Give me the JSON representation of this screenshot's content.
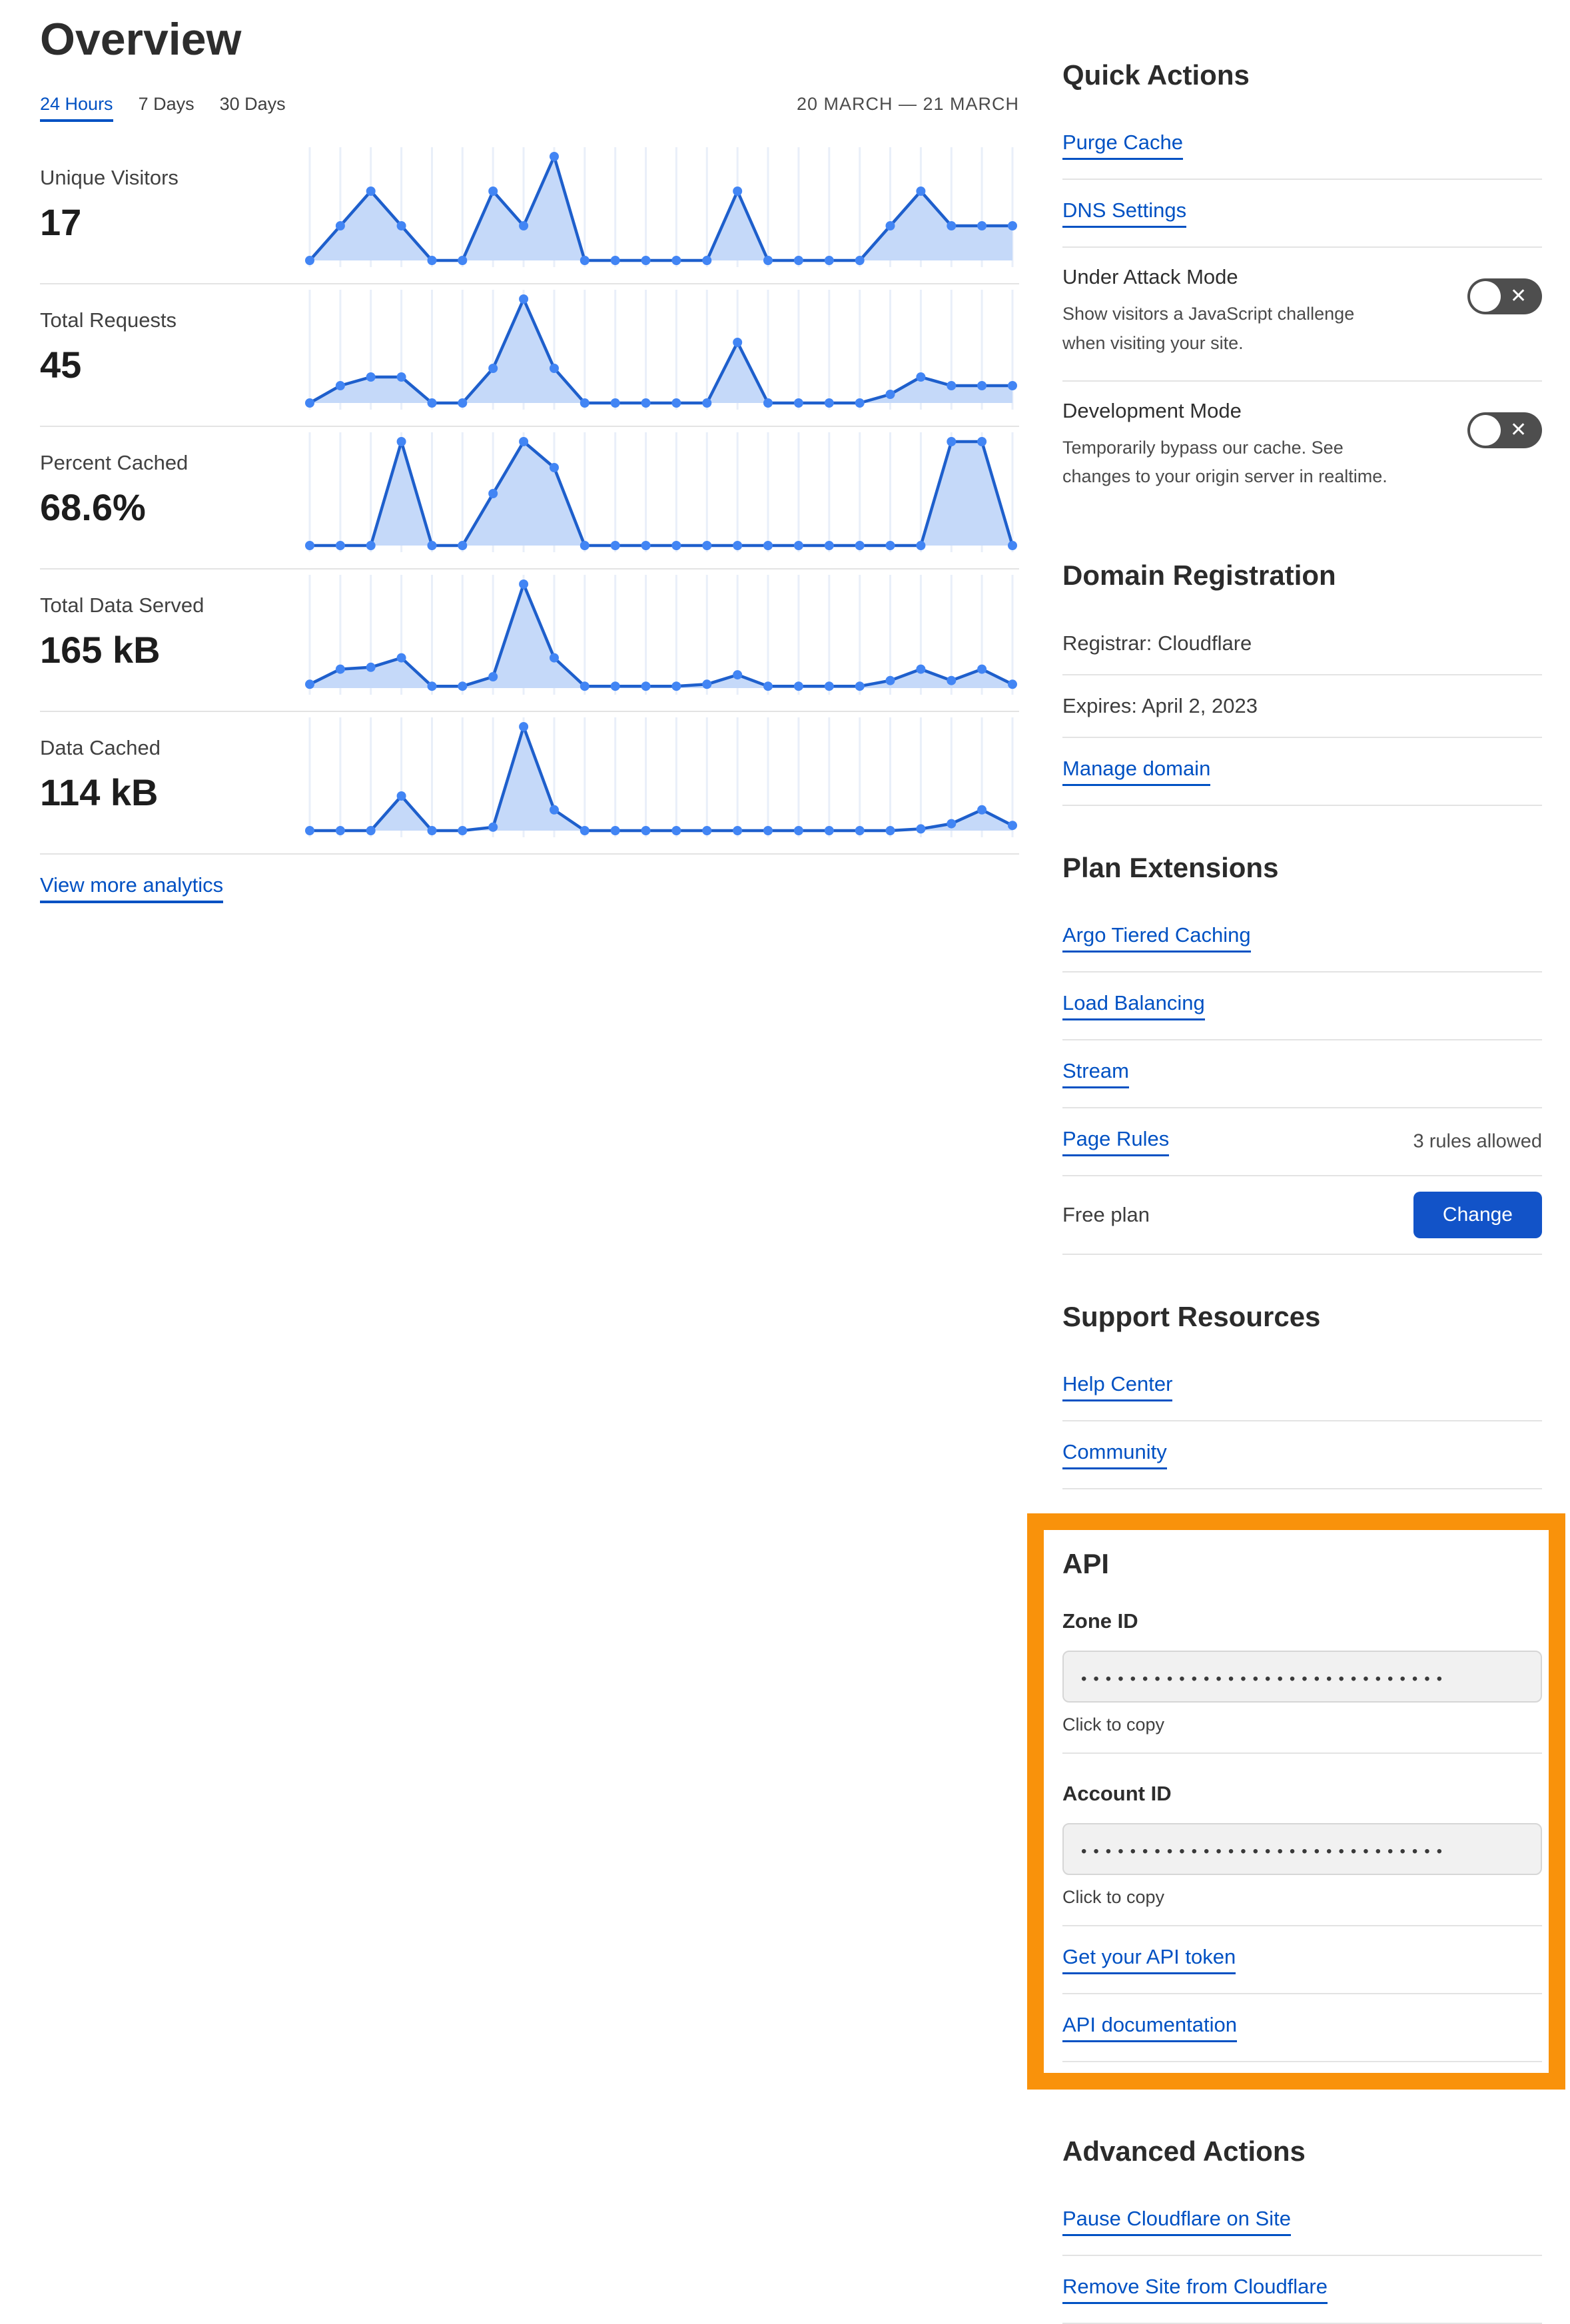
{
  "page": {
    "title": "Overview"
  },
  "toolbar": {
    "tabs": [
      {
        "label": "24 Hours",
        "active": true
      },
      {
        "label": "7 Days",
        "active": false
      },
      {
        "label": "30 Days",
        "active": false
      }
    ],
    "date_range": "20 MARCH — 21 MARCH"
  },
  "analytics": {
    "view_more": "View more analytics"
  },
  "chart_data": [
    {
      "type": "area",
      "title": "Unique Visitors",
      "display_value": "17",
      "x_points": 24,
      "x_range": "24 hours, 20 March — 21 March",
      "ylim": [
        0,
        6
      ],
      "grid": "vertical",
      "values": [
        0,
        2,
        4,
        2,
        0,
        0,
        4,
        2,
        6,
        0,
        0,
        0,
        0,
        0,
        4,
        0,
        0,
        0,
        0,
        2,
        4,
        2,
        2,
        2
      ]
    },
    {
      "type": "area",
      "title": "Total Requests",
      "display_value": "45",
      "x_points": 24,
      "x_range": "24 hours, 20 March — 21 March",
      "ylim": [
        0,
        12
      ],
      "grid": "vertical",
      "values": [
        0,
        2,
        3,
        3,
        0,
        0,
        4,
        12,
        4,
        0,
        0,
        0,
        0,
        0,
        7,
        0,
        0,
        0,
        0,
        1,
        3,
        2,
        2,
        2
      ]
    },
    {
      "type": "area",
      "title": "Percent Cached",
      "display_value": "68.6%",
      "x_points": 24,
      "x_range": "24 hours, 20 March — 21 March",
      "ylim": [
        0,
        100
      ],
      "grid": "vertical",
      "values": [
        0,
        0,
        0,
        100,
        0,
        0,
        50,
        100,
        75,
        0,
        0,
        0,
        0,
        0,
        0,
        0,
        0,
        0,
        0,
        0,
        0,
        100,
        100,
        0
      ]
    },
    {
      "type": "area",
      "title": "Total Data Served",
      "display_value": "165 kB",
      "x_points": 24,
      "x_range": "24 hours, 20 March — 21 March",
      "ylim": [
        0,
        55
      ],
      "grid": "vertical",
      "values": [
        2,
        10,
        11,
        16,
        1,
        1,
        6,
        55,
        16,
        1,
        1,
        1,
        1,
        2,
        7,
        1,
        1,
        1,
        1,
        4,
        10,
        4,
        10,
        2
      ]
    },
    {
      "type": "area",
      "title": "Data Cached",
      "display_value": "114 kB",
      "x_points": 24,
      "x_range": "24 hours, 20 March — 21 March",
      "ylim": [
        0,
        60
      ],
      "grid": "vertical",
      "values": [
        0,
        0,
        0,
        20,
        0,
        0,
        2,
        60,
        12,
        0,
        0,
        0,
        0,
        0,
        0,
        0,
        0,
        0,
        0,
        0,
        1,
        4,
        12,
        3
      ]
    }
  ],
  "quick_actions": {
    "heading": "Quick Actions",
    "links": [
      "Purge Cache",
      "DNS Settings"
    ],
    "toggles": [
      {
        "label": "Under Attack Mode",
        "description": "Show visitors a JavaScript challenge when visiting your site.",
        "state": "off"
      },
      {
        "label": "Development Mode",
        "description": "Temporarily bypass our cache. See changes to your origin server in realtime.",
        "state": "off"
      }
    ]
  },
  "domain_registration": {
    "heading": "Domain Registration",
    "registrar": "Registrar: Cloudflare",
    "expires": "Expires: April 2, 2023",
    "manage_link": "Manage domain"
  },
  "plan_extensions": {
    "heading": "Plan Extensions",
    "links": [
      "Argo Tiered Caching",
      "Load Balancing",
      "Stream"
    ],
    "page_rules": {
      "label": "Page Rules",
      "note": "3 rules allowed"
    },
    "plan": {
      "label": "Free plan",
      "button": "Change"
    }
  },
  "support_resources": {
    "heading": "Support Resources",
    "links": [
      "Help Center",
      "Community"
    ]
  },
  "api": {
    "heading": "API",
    "zone_id": {
      "label": "Zone ID",
      "masked_value": "••••••••••••••••••••••••••••••",
      "copy_hint": "Click to copy"
    },
    "account_id": {
      "label": "Account ID",
      "masked_value": "••••••••••••••••••••••••••••••",
      "copy_hint": "Click to copy"
    },
    "links": [
      "Get your API token",
      "API documentation"
    ]
  },
  "advanced_actions": {
    "heading": "Advanced Actions",
    "links": [
      "Pause Cloudflare on Site",
      "Remove Site from Cloudflare"
    ]
  },
  "colors": {
    "link_blue": "#0051C3",
    "button_blue": "#1253C8",
    "highlight_orange": "#F9920B",
    "toggle_off_gray": "#4E4E4E",
    "chart_line": "#1E5FCC",
    "chart_dot": "#4285F4",
    "chart_fill": "#C5D9F9",
    "chart_grid": "#E9EFF9"
  }
}
